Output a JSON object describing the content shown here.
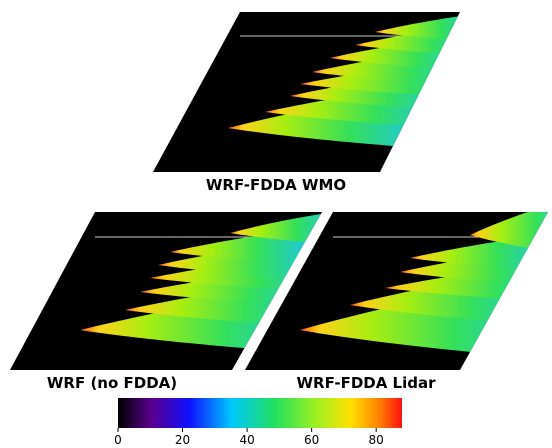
{
  "panels": [
    {
      "label": "WRF-FDDA WMO"
    },
    {
      "label": "WRF (no FDDA)"
    },
    {
      "label": "WRF-FDDA Lidar"
    }
  ],
  "colorbar": {
    "lim": [
      0,
      88
    ],
    "ticks": [
      0,
      20,
      40,
      60,
      80
    ]
  }
}
